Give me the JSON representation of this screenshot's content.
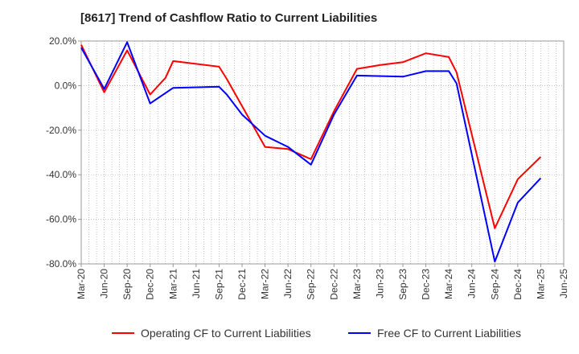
{
  "chart_data": {
    "type": "line",
    "title": "[8617]  Trend of Cashflow Ratio to Current Liabilities",
    "xlabel": "",
    "ylabel": "",
    "x": [
      "Mar-20",
      "Jun-20",
      "Sep-20",
      "Dec-20",
      "Mar-21",
      "Jun-21",
      "Sep-21",
      "Dec-21",
      "Mar-22",
      "Jun-22",
      "Sep-22",
      "Dec-22",
      "Mar-23",
      "Jun-23",
      "Sep-23",
      "Dec-23",
      "Mar-24",
      "Jun-24",
      "Sep-24",
      "Dec-24",
      "Mar-25",
      "Jun-25"
    ],
    "ylim": [
      -80,
      20
    ],
    "yticks": [
      20,
      0,
      -20,
      -40,
      -60,
      -80
    ],
    "ytick_labels": [
      "20.0%",
      "0.0%",
      "-20.0%",
      "-40.0%",
      "-60.0%",
      "-80.0%"
    ],
    "grid": true,
    "legend_position": "bottom",
    "series": [
      {
        "name": "Operating CF to Current Liabilities",
        "color": "#ff0000",
        "points": [
          [
            "Mar-20",
            18.3
          ],
          [
            "Jun-20",
            -3.0
          ],
          [
            "Sep-20",
            15.8
          ],
          [
            "Dec-20",
            -4.0
          ],
          [
            "Feb-21",
            3.5
          ],
          [
            "Mar-21",
            11.0
          ],
          [
            "Sep-21",
            8.5
          ],
          [
            "Oct-21",
            3.0
          ],
          [
            "Mar-22",
            -27.5
          ],
          [
            "Jun-22",
            -28.5
          ],
          [
            "Sep-22",
            -33.0
          ],
          [
            "Dec-22",
            -11.5
          ],
          [
            "Mar-23",
            7.5
          ],
          [
            "Jun-23",
            9.2
          ],
          [
            "Sep-23",
            10.5
          ],
          [
            "Dec-23",
            14.5
          ],
          [
            "Mar-24",
            12.8
          ],
          [
            "Apr-24",
            6.0
          ],
          [
            "Sep-24",
            -64.0
          ],
          [
            "Dec-24",
            -42.0
          ],
          [
            "Mar-25",
            -32.0
          ]
        ]
      },
      {
        "name": "Free CF to Current Liabilities",
        "color": "#0000ff",
        "points": [
          [
            "Mar-20",
            17.0
          ],
          [
            "Jun-20",
            -1.5
          ],
          [
            "Sep-20",
            19.5
          ],
          [
            "Dec-20",
            -8.0
          ],
          [
            "Mar-21",
            -1.0
          ],
          [
            "Sep-21",
            -0.5
          ],
          [
            "Oct-21",
            -4.0
          ],
          [
            "Dec-21",
            -13.0
          ],
          [
            "Mar-22",
            -22.5
          ],
          [
            "Jun-22",
            -27.5
          ],
          [
            "Sep-22",
            -35.5
          ],
          [
            "Dec-22",
            -13.0
          ],
          [
            "Mar-23",
            4.5
          ],
          [
            "Sep-23",
            4.0
          ],
          [
            "Dec-23",
            6.5
          ],
          [
            "Mar-24",
            6.5
          ],
          [
            "Apr-24",
            1.0
          ],
          [
            "Sep-24",
            -79.0
          ],
          [
            "Dec-24",
            -52.5
          ],
          [
            "Mar-25",
            -41.5
          ]
        ]
      }
    ]
  }
}
